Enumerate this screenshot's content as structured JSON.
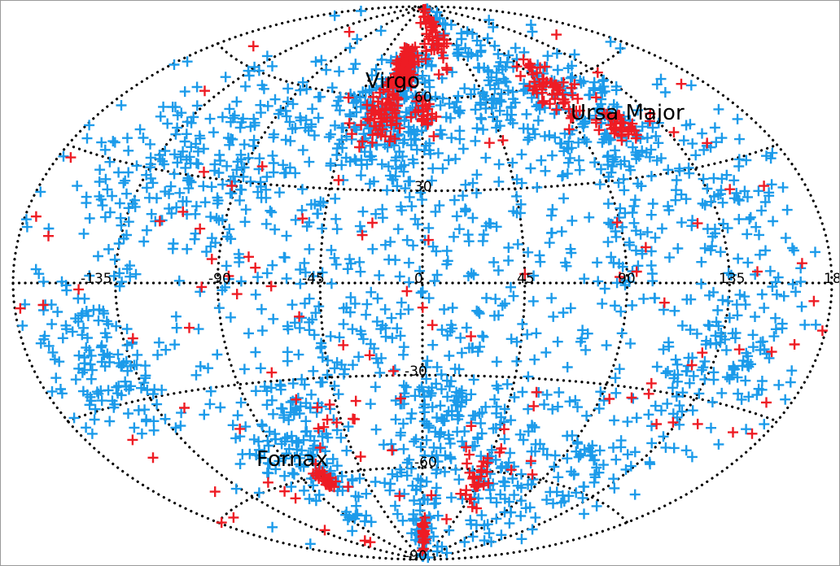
{
  "projection": "aitoff",
  "graticule": {
    "meridian_labels": [
      "-135",
      "-90",
      "-45",
      "0",
      "45",
      "90",
      "135",
      "18"
    ],
    "parallel_labels": [
      "30",
      "60",
      "-30",
      "-60",
      "-90"
    ]
  },
  "region_labels": [
    "Virgo",
    "Ursa Major",
    "Fornax"
  ],
  "colors": {
    "primary_sample": "#1c9bea",
    "secondary_sample": "#ee1c24",
    "grid": "#000000",
    "frame": "#9a9a9a"
  },
  "marker": "plus",
  "chart_data": {
    "type": "scatter",
    "coordinate_system": "supergalactic",
    "x_range": [
      -180,
      180
    ],
    "y_range": [
      -90,
      90
    ],
    "series": [
      {
        "color": "#1c9bea",
        "clusters": [
          {
            "lon": -20,
            "lat": 55,
            "spread": 18,
            "count": 220
          },
          {
            "lon": 60,
            "lat": 60,
            "spread": 20,
            "count": 160
          },
          {
            "lon": 110,
            "lat": 45,
            "spread": 14,
            "count": 110
          },
          {
            "lon": -90,
            "lat": 35,
            "spread": 22,
            "count": 170
          },
          {
            "lon": -140,
            "lat": 25,
            "spread": 20,
            "count": 90
          },
          {
            "lon": 140,
            "lat": 20,
            "spread": 18,
            "count": 90
          },
          {
            "lon": 0,
            "lat": 25,
            "spread": 25,
            "count": 80
          },
          {
            "lon": 90,
            "lat": 15,
            "spread": 18,
            "count": 60
          },
          {
            "lon": -150,
            "lat": -20,
            "spread": 14,
            "count": 120
          },
          {
            "lon": -75,
            "lat": -50,
            "spread": 16,
            "count": 140
          },
          {
            "lon": -40,
            "lat": -15,
            "spread": 20,
            "count": 90
          },
          {
            "lon": 10,
            "lat": -40,
            "spread": 15,
            "count": 110
          },
          {
            "lon": 60,
            "lat": -55,
            "spread": 20,
            "count": 90
          },
          {
            "lon": 140,
            "lat": -20,
            "spread": 16,
            "count": 110
          },
          {
            "lon": 110,
            "lat": -55,
            "spread": 18,
            "count": 80
          },
          {
            "lon": -5,
            "lat": -75,
            "spread": 12,
            "count": 70
          },
          {
            "lon": 40,
            "lat": -10,
            "spread": 20,
            "count": 40
          },
          {
            "lon": 0,
            "lat": 0,
            "spread": 90,
            "count": 300
          }
        ]
      },
      {
        "color": "#ee1c24",
        "clusters": [
          {
            "lon": -18,
            "lat": 70,
            "spread": 5,
            "count": 130
          },
          {
            "lon": -25,
            "lat": 55,
            "spread": 6,
            "count": 60
          },
          {
            "lon": 2,
            "lat": 55,
            "spread": 4,
            "count": 25
          },
          {
            "lon": 95,
            "lat": 58,
            "spread": 8,
            "count": 60
          },
          {
            "lon": 115,
            "lat": 45,
            "spread": 4,
            "count": 35
          },
          {
            "lon": 20,
            "lat": 82,
            "spread": 8,
            "count": 50
          },
          {
            "lon": -75,
            "lat": -62,
            "spread": 3,
            "count": 30
          },
          {
            "lon": 2,
            "lat": -82,
            "spread": 4,
            "count": 25
          },
          {
            "lon": 45,
            "lat": -62,
            "spread": 8,
            "count": 30
          },
          {
            "lon": -45,
            "lat": -45,
            "spread": 10,
            "count": 12
          },
          {
            "lon": 0,
            "lat": 0,
            "spread": 80,
            "count": 110
          }
        ]
      }
    ]
  }
}
